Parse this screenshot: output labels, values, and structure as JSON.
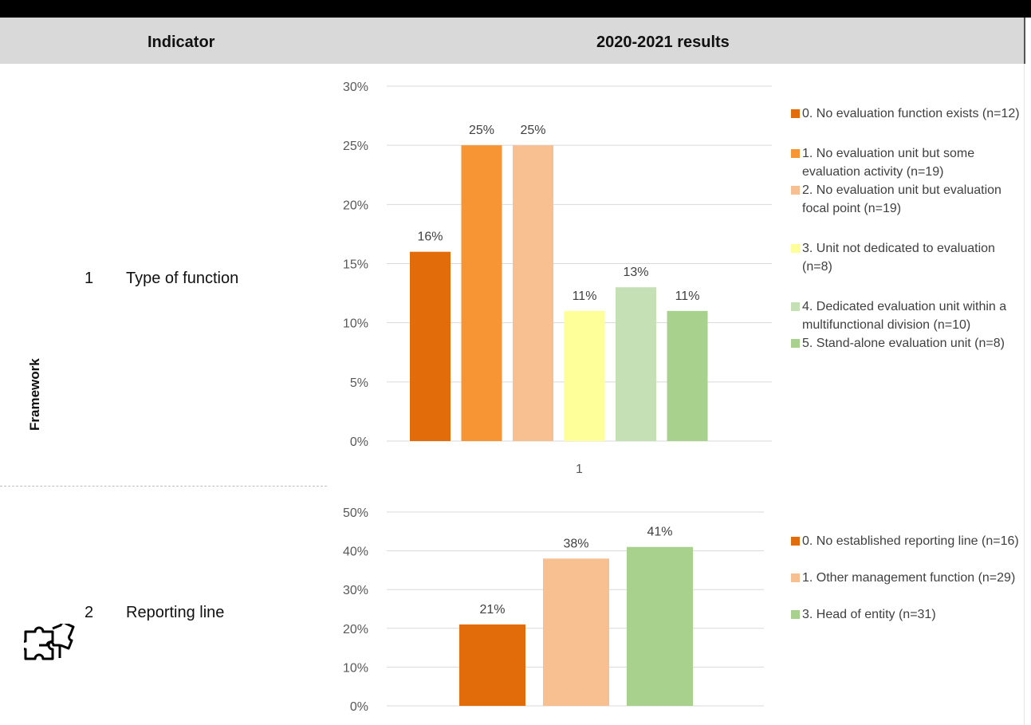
{
  "header": {
    "indicator_label": "Indicator",
    "results_label": "2020-2021 results"
  },
  "side_label": "Framework",
  "side_icon": "puzzle-icon",
  "rows": [
    {
      "number": "1",
      "label": "Type of function"
    },
    {
      "number": "2",
      "label": "Reporting line"
    }
  ],
  "colors": {
    "header_bg": "#d9d9d9",
    "dark_orange": "#e36c0a",
    "orange": "#f79433",
    "peach": "#f8bf90",
    "yellow": "#ffff99",
    "light_green": "#c5e0b4",
    "green": "#a9d18e"
  },
  "chart_data": [
    {
      "type": "bar",
      "categories": [
        "1"
      ],
      "ylim": [
        0,
        30
      ],
      "yticks": [
        "0%",
        "5%",
        "10%",
        "15%",
        "20%",
        "25%",
        "30%"
      ],
      "series": [
        {
          "name": "0. No evaluation function exists (n=12)",
          "value": 16,
          "label": "16%",
          "color": "#e36c0a"
        },
        {
          "name": "1. No evaluation unit but some evaluation activity (n=19)",
          "value": 25,
          "label": "25%",
          "color": "#f79433"
        },
        {
          "name": "2. No evaluation unit but evaluation focal point (n=19)",
          "value": 25,
          "label": "25%",
          "color": "#f8bf90"
        },
        {
          "name": "3. Unit not dedicated to evaluation (n=8)",
          "value": 11,
          "label": "11%",
          "color": "#ffff99"
        },
        {
          "name": "4. Dedicated evaluation unit within a multifunctional division (n=10)",
          "value": 13,
          "label": "13%",
          "color": "#c5e0b4"
        },
        {
          "name": "5. Stand-alone evaluation unit (n=8)",
          "value": 11,
          "label": "11%",
          "color": "#a9d18e"
        }
      ],
      "legend_position": "right",
      "grid": true
    },
    {
      "type": "bar",
      "categories": [
        ""
      ],
      "ylim": [
        0,
        50
      ],
      "yticks": [
        "0%",
        "10%",
        "20%",
        "30%",
        "40%",
        "50%"
      ],
      "series": [
        {
          "name": "0. No established reporting line (n=16)",
          "value": 21,
          "label": "21%",
          "color": "#e36c0a"
        },
        {
          "name": "1. Other management function (n=29)",
          "value": 38,
          "label": "38%",
          "color": "#f8bf90"
        },
        {
          "name": "3. Head of entity (n=31)",
          "value": 41,
          "label": "41%",
          "color": "#a9d18e"
        }
      ],
      "legend_position": "right",
      "grid": true
    }
  ]
}
